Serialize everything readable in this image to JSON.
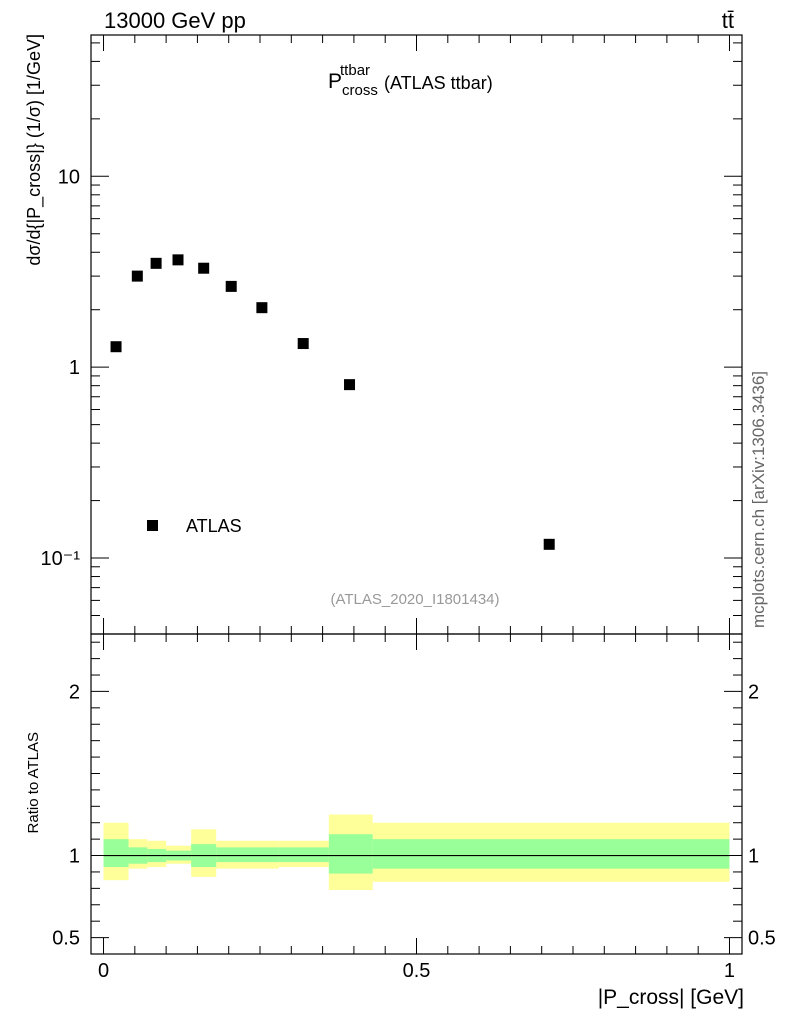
{
  "header": {
    "energy_label": "13000 GeV pp",
    "process_label": "tt̄",
    "side_label": "mcplots.cern.ch [arXiv:1306.3436]"
  },
  "chart_data": {
    "type": "scatter",
    "top_panel": {
      "title_main": "P",
      "title_sup": "ttbar",
      "title_sub": "cross",
      "title_suffix": "(ATLAS ttbar)",
      "analysis_label": "(ATLAS_2020_I1801434)",
      "ylabel": "dσ/d{|P_cross|} (1/σ) [1/GeV]",
      "yscale": "log",
      "ylim": [
        0.04,
        55
      ],
      "y_ticks": [
        {
          "value": 10,
          "label": "10"
        },
        {
          "value": 1,
          "label": "1"
        },
        {
          "value": 0.1,
          "label": "10⁻¹"
        }
      ],
      "legend": {
        "entry": "ATLAS",
        "placement": "lower-left"
      },
      "series": [
        {
          "name": "ATLAS",
          "x": [
            0.02,
            0.054,
            0.084,
            0.119,
            0.16,
            0.204,
            0.253,
            0.319,
            0.393,
            0.712
          ],
          "y": [
            1.28,
            3.0,
            3.5,
            3.65,
            3.3,
            2.65,
            2.05,
            1.33,
            0.81,
            0.118
          ]
        }
      ]
    },
    "ratio_panel": {
      "ylabel": "Ratio to ATLAS",
      "ylim": [
        0.4,
        2.35
      ],
      "y_ticks": [
        {
          "value": 2,
          "label": "2"
        },
        {
          "value": 1,
          "label": "1"
        },
        {
          "value": 0.5,
          "label": "0.5"
        }
      ],
      "bins": [
        {
          "x0": 0.0,
          "x1": 0.04,
          "inner": [
            0.93,
            1.1
          ],
          "outer": [
            0.85,
            1.2
          ]
        },
        {
          "x0": 0.04,
          "x1": 0.07,
          "inner": [
            0.95,
            1.05
          ],
          "outer": [
            0.92,
            1.1
          ]
        },
        {
          "x0": 0.07,
          "x1": 0.1,
          "inner": [
            0.96,
            1.04
          ],
          "outer": [
            0.93,
            1.09
          ]
        },
        {
          "x0": 0.1,
          "x1": 0.14,
          "inner": [
            0.97,
            1.03
          ],
          "outer": [
            0.95,
            1.06
          ]
        },
        {
          "x0": 0.14,
          "x1": 0.18,
          "inner": [
            0.93,
            1.07
          ],
          "outer": [
            0.87,
            1.16
          ]
        },
        {
          "x0": 0.18,
          "x1": 0.23,
          "inner": [
            0.96,
            1.05
          ],
          "outer": [
            0.92,
            1.09
          ]
        },
        {
          "x0": 0.23,
          "x1": 0.28,
          "inner": [
            0.96,
            1.05
          ],
          "outer": [
            0.92,
            1.09
          ]
        },
        {
          "x0": 0.28,
          "x1": 0.36,
          "inner": [
            0.96,
            1.05
          ],
          "outer": [
            0.93,
            1.09
          ]
        },
        {
          "x0": 0.36,
          "x1": 0.43,
          "inner": [
            0.89,
            1.13
          ],
          "outer": [
            0.79,
            1.25
          ]
        },
        {
          "x0": 0.43,
          "x1": 1.0,
          "inner": [
            0.92,
            1.1
          ],
          "outer": [
            0.84,
            1.2
          ]
        }
      ]
    },
    "xlabel": "|P_cross| [GeV]",
    "xlim": [
      -0.02,
      1.02
    ],
    "x_ticks": [
      {
        "value": 0,
        "label": "0"
      },
      {
        "value": 0.5,
        "label": "0.5"
      },
      {
        "value": 1,
        "label": "1"
      }
    ],
    "colors": {
      "inner_band": "#99ff99",
      "outer_band": "#ffff99",
      "marker": "#000000"
    }
  }
}
